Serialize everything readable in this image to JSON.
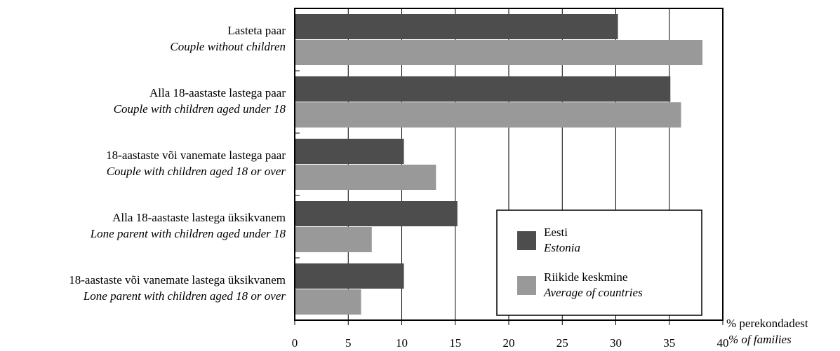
{
  "chart_data": {
    "type": "barh",
    "categories": [
      "Lasteta paar",
      "Alla 18-aastaste lastega paar",
      "18-aastaste või vanemate lastega paar",
      "Alla 18-aastaste lastega üksikvanem",
      "18-aastaste või vanemate lastega üksikvanem"
    ],
    "categories_en": [
      "Couple without children",
      "Couple with children aged under 18",
      "Couple with children aged 18 or over",
      "Lone parent with children aged under 18",
      "Lone parent with children aged 18 or over"
    ],
    "series": [
      {
        "name": "Eesti",
        "name_en": "Estonia",
        "color": "#4d4d4d",
        "values": [
          30.2,
          35.1,
          10.2,
          15.2,
          10.2
        ]
      },
      {
        "name": "Riikide keskmine",
        "name_en": "Average of countries",
        "color": "#999999",
        "values": [
          38.1,
          36.1,
          13.2,
          7.2,
          6.2
        ]
      }
    ],
    "xlabel": "% perekondadest",
    "xlabel_en": "% of families",
    "xlim": [
      0,
      40
    ],
    "xticks": [
      0,
      5,
      10,
      15,
      20,
      25,
      30,
      35,
      40
    ],
    "grid": true,
    "legend": "lower right"
  }
}
